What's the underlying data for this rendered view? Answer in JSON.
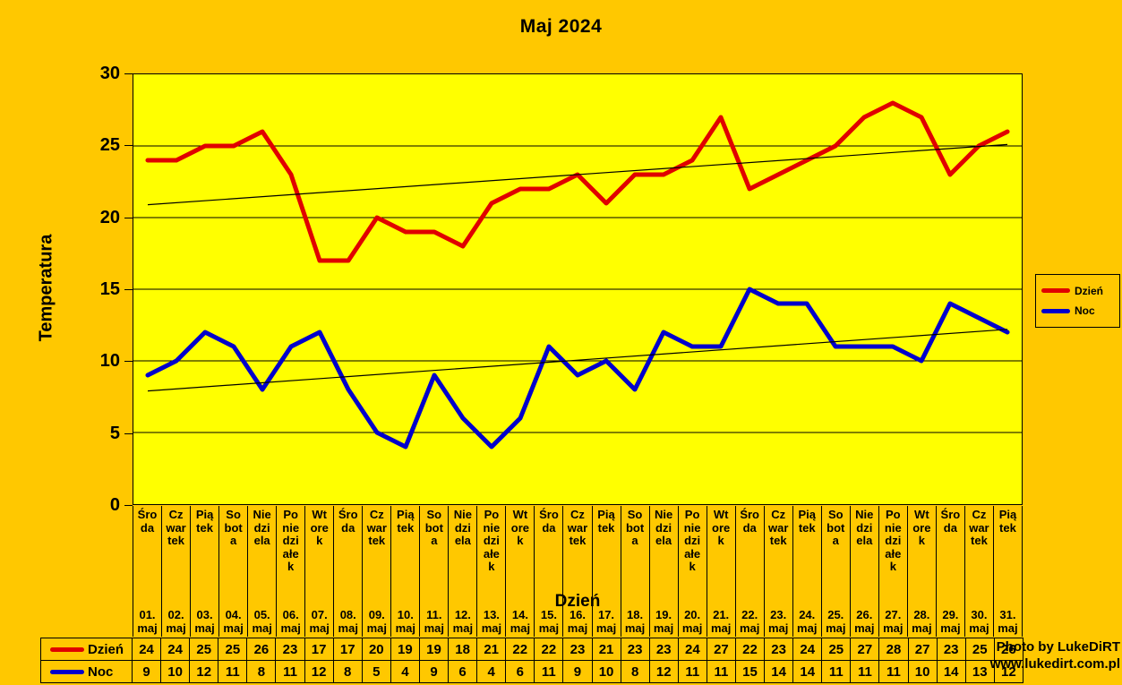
{
  "page": {
    "background_color": "#FFC800",
    "plot_background_color": "#FFFF00",
    "text_color": "#000000"
  },
  "chart_data": {
    "type": "line",
    "title": "Maj 2024",
    "xlabel": "Dzień",
    "ylabel": "Temperatura",
    "ylim": [
      0,
      30
    ],
    "yticks": [
      30,
      25,
      20,
      15,
      10,
      5,
      0
    ],
    "gridlines": [
      25,
      20,
      15,
      10,
      5
    ],
    "grid": "horizontal-only",
    "legend_position": "right",
    "categories_weekday": [
      "Śro\nda",
      "Cz\nwar\ntek",
      "Pią\ntek",
      "So\nbot\na",
      "Nie\ndzi\nela",
      "Po\nnie\ndzi\nałe\nk",
      "Wt\nore\nk",
      "Śro\nda",
      "Cz\nwar\ntek",
      "Pią\ntek",
      "So\nbot\na",
      "Nie\ndzi\nela",
      "Po\nnie\ndzi\nałe\nk",
      "Wt\nore\nk",
      "Śro\nda",
      "Cz\nwar\ntek",
      "Pią\ntek",
      "So\nbot\na",
      "Nie\ndzi\nela",
      "Po\nnie\ndzi\nałe\nk",
      "Wt\nore\nk",
      "Śro\nda",
      "Cz\nwar\ntek",
      "Pią\ntek",
      "So\nbot\na",
      "Nie\ndzi\nela",
      "Po\nnie\ndzi\nałe\nk",
      "Wt\nore\nk",
      "Śro\nda",
      "Cz\nwar\ntek",
      "Pią\ntek"
    ],
    "categories_date": [
      "01.\nmaj",
      "02.\nmaj",
      "03.\nmaj",
      "04.\nmaj",
      "05.\nmaj",
      "06.\nmaj",
      "07.\nmaj",
      "08.\nmaj",
      "09.\nmaj",
      "10.\nmaj",
      "11.\nmaj",
      "12.\nmaj",
      "13.\nmaj",
      "14.\nmaj",
      "15.\nmaj",
      "16.\nmaj",
      "17.\nmaj",
      "18.\nmaj",
      "19.\nmaj",
      "20.\nmaj",
      "21.\nmaj",
      "22.\nmaj",
      "23.\nmaj",
      "24.\nmaj",
      "25.\nmaj",
      "26.\nmaj",
      "27.\nmaj",
      "28.\nmaj",
      "29.\nmaj",
      "30.\nmaj",
      "31.\nmaj"
    ],
    "series": [
      {
        "name": "Dzień",
        "color": "#E00000",
        "values": [
          24,
          24,
          25,
          25,
          26,
          23,
          17,
          17,
          20,
          19,
          19,
          18,
          21,
          22,
          22,
          23,
          21,
          23,
          23,
          24,
          27,
          22,
          23,
          24,
          25,
          27,
          28,
          27,
          23,
          25,
          26
        ]
      },
      {
        "name": "Noc",
        "color": "#0000CC",
        "values": [
          9,
          10,
          12,
          11,
          8,
          11,
          12,
          8,
          5,
          4,
          9,
          6,
          4,
          6,
          11,
          9,
          10,
          8,
          12,
          11,
          11,
          15,
          14,
          14,
          11,
          11,
          11,
          10,
          14,
          13,
          12
        ]
      }
    ],
    "trendlines": [
      {
        "series": "Dzień",
        "start_value": 20.9,
        "end_value": 25.1,
        "color": "#000000"
      },
      {
        "series": "Noc",
        "start_value": 7.9,
        "end_value": 12.2,
        "color": "#000000"
      }
    ]
  },
  "legend": {
    "items": [
      {
        "label": "Dzień",
        "color": "#E00000"
      },
      {
        "label": "Noc",
        "color": "#0000CC"
      }
    ]
  },
  "watermark": {
    "line1": "Photo by LukeDiRT",
    "line2": "www.lukedirt.com.pl"
  }
}
